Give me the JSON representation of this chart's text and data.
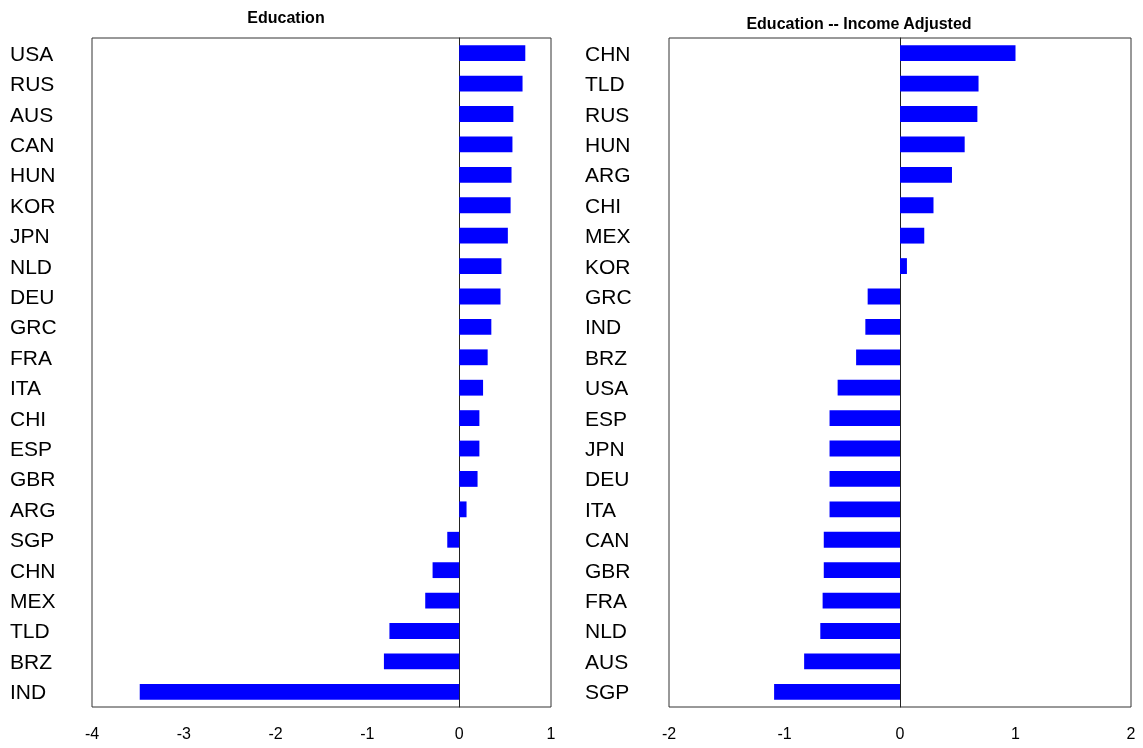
{
  "chart_data": [
    {
      "type": "bar",
      "orientation": "horizontal",
      "title": "Education",
      "color": "#0000ff",
      "xlim": [
        -4,
        1
      ],
      "xticks": [
        -4,
        -3,
        -2,
        -1,
        0,
        1
      ],
      "categories": [
        "USA",
        "RUS",
        "AUS",
        "CAN",
        "HUN",
        "KOR",
        "JPN",
        "NLD",
        "DEU",
        "GRC",
        "FRA",
        "ITA",
        "CHI",
        "ESP",
        "GBR",
        "ARG",
        "SGP",
        "CHN",
        "MEX",
        "TLD",
        "BRZ",
        "IND"
      ],
      "values": [
        0.72,
        0.69,
        0.59,
        0.58,
        0.57,
        0.56,
        0.53,
        0.46,
        0.45,
        0.35,
        0.31,
        0.26,
        0.22,
        0.22,
        0.2,
        0.08,
        -0.13,
        -0.29,
        -0.37,
        -0.76,
        -0.82,
        -3.48
      ]
    },
    {
      "type": "bar",
      "orientation": "horizontal",
      "title": "Education -- Income Adjusted",
      "color": "#0000ff",
      "xlim": [
        -2,
        2
      ],
      "xticks": [
        -2,
        -1,
        0,
        1,
        2
      ],
      "categories": [
        "CHN",
        "TLD",
        "RUS",
        "HUN",
        "ARG",
        "CHI",
        "MEX",
        "KOR",
        "GRC",
        "IND",
        "BRZ",
        "USA",
        "ESP",
        "JPN",
        "DEU",
        "ITA",
        "CAN",
        "GBR",
        "FRA",
        "NLD",
        "AUS",
        "SGP"
      ],
      "values": [
        1.0,
        0.68,
        0.67,
        0.56,
        0.45,
        0.29,
        0.21,
        0.06,
        -0.28,
        -0.3,
        -0.38,
        -0.54,
        -0.61,
        -0.61,
        -0.61,
        -0.61,
        -0.66,
        -0.66,
        -0.67,
        -0.69,
        -0.83,
        -1.09
      ]
    }
  ]
}
